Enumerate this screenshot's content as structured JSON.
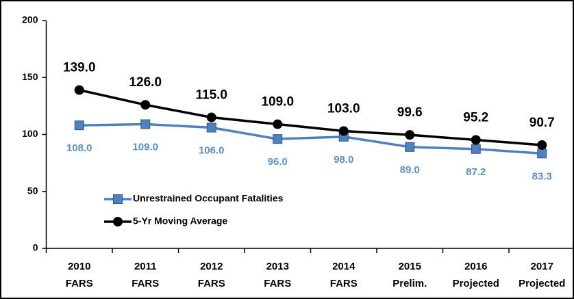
{
  "chart_data": {
    "type": "line",
    "categories": [
      [
        "2010",
        "FARS"
      ],
      [
        "2011",
        "FARS"
      ],
      [
        "2012",
        "FARS"
      ],
      [
        "2013",
        "FARS"
      ],
      [
        "2014",
        "FARS"
      ],
      [
        "2015",
        "Prelim."
      ],
      [
        "2016",
        "Projected"
      ],
      [
        "2017",
        "Projected"
      ]
    ],
    "series": [
      {
        "name": "Unrestrained Occupant Fatalities",
        "color": "#4f81bd",
        "marker": "square",
        "values": [
          108.0,
          109.0,
          106.0,
          96.0,
          98.0,
          89.0,
          87.2,
          83.3
        ],
        "value_labels": [
          "108.0",
          "109.0",
          "106.0",
          "96.0",
          "98.0",
          "89.0",
          "87.2",
          "83.3"
        ]
      },
      {
        "name": "5-Yr Moving Average",
        "color": "#000000",
        "marker": "circle",
        "values": [
          139.0,
          126.0,
          115.0,
          109.0,
          103.0,
          99.6,
          95.2,
          90.7
        ],
        "value_labels": [
          "139.0",
          "126.0",
          "115.0",
          "109.0",
          "103.0",
          "99.6",
          "95.2",
          "90.7"
        ]
      }
    ],
    "ylim": [
      0,
      200
    ],
    "yticks": [
      0,
      50,
      100,
      150,
      200
    ]
  }
}
